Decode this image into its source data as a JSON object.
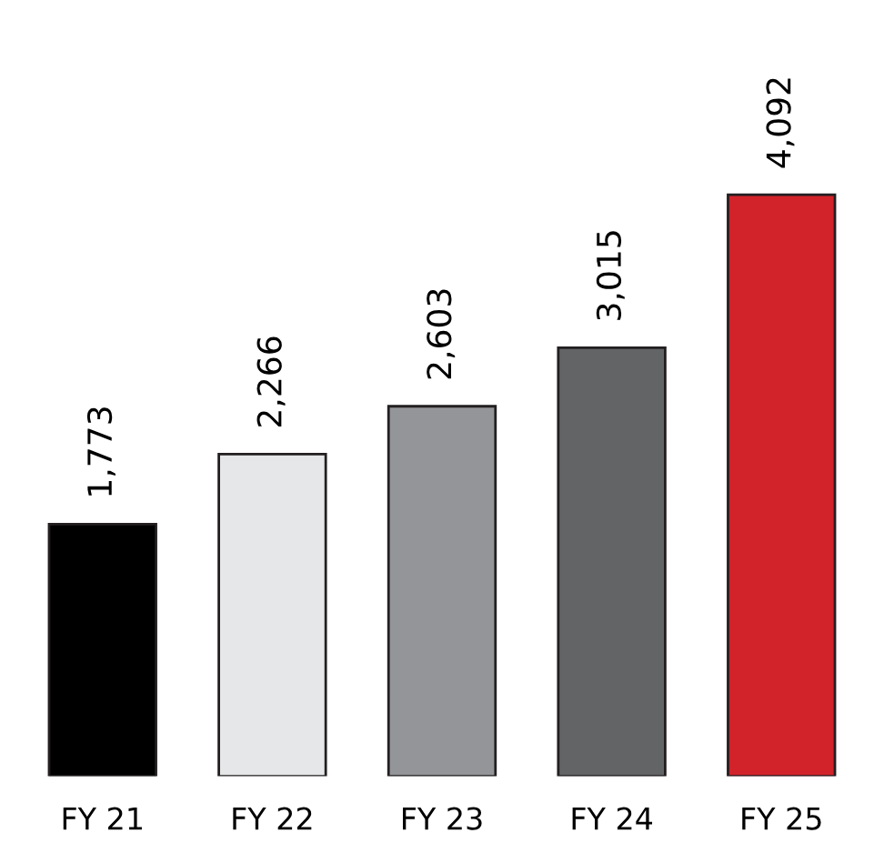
{
  "chart_data": {
    "type": "bar",
    "categories": [
      "FY 21",
      "FY 22",
      "FY 23",
      "FY 24",
      "FY 25"
    ],
    "values": [
      1773,
      2266,
      2603,
      3015,
      4092
    ],
    "colors": [
      "#000000",
      "#e6e7e8",
      "#939598",
      "#636466",
      "#d2232a"
    ],
    "value_labels": [
      "1,773",
      "2,266",
      "2,603",
      "3,015",
      "4,092"
    ],
    "grid": false,
    "legend": false
  }
}
